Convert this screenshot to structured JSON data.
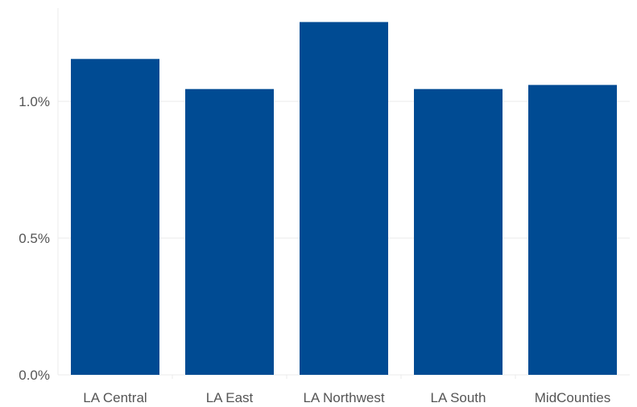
{
  "chart_data": {
    "type": "bar",
    "categories": [
      "LA Central",
      "LA East",
      "LA Northwest",
      "LA South",
      "MidCounties"
    ],
    "values": [
      1.155,
      1.045,
      1.29,
      1.045,
      1.06
    ],
    "yticks": [
      {
        "value": 0.0,
        "label": "0.0%"
      },
      {
        "value": 0.5,
        "label": "0.5%"
      },
      {
        "value": 1.0,
        "label": "1.0%"
      }
    ],
    "ylim": [
      0,
      1.35
    ],
    "grid": true,
    "bar_color": "#004b93",
    "grid_color": "#ebebeb",
    "title": "",
    "xlabel": "",
    "ylabel": ""
  }
}
